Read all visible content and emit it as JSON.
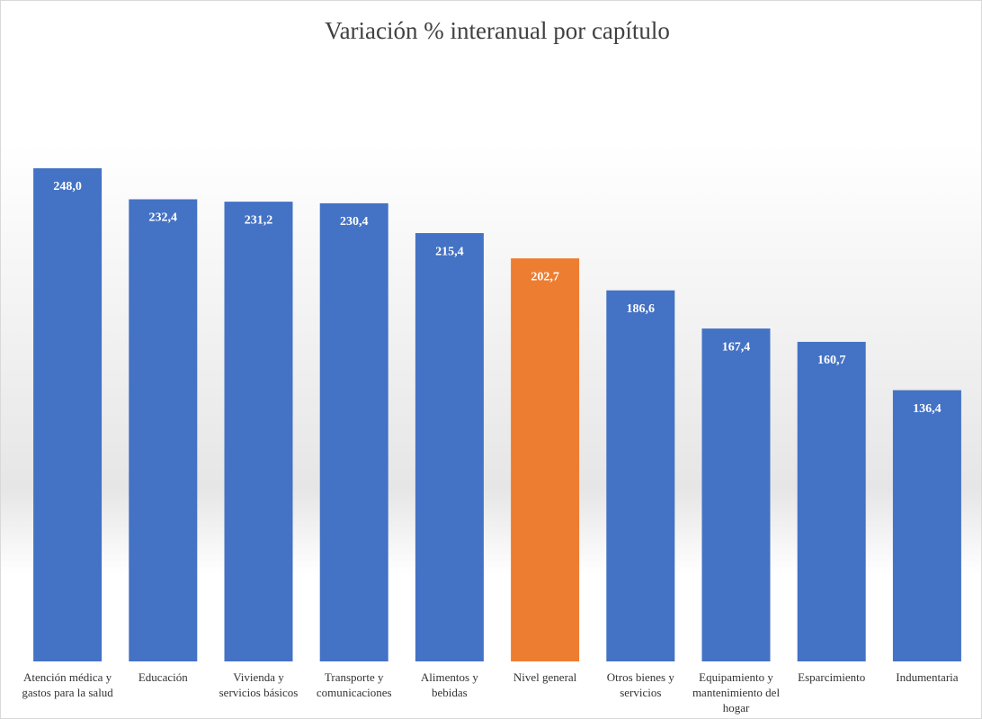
{
  "chart_data": {
    "type": "bar",
    "title": "Variación % interanual por capítulo",
    "categories": [
      "Atención médica y gastos para la salud",
      "Educación",
      "Vivienda y servicios básicos",
      "Transporte y comunicaciones",
      "Alimentos y bebidas",
      "Nivel general",
      "Otros bienes y servicios",
      "Equipamiento y mantenimiento del hogar",
      "Esparcimiento",
      "Indumentaria"
    ],
    "values": [
      248.0,
      232.4,
      231.2,
      230.4,
      215.4,
      202.7,
      186.6,
      167.4,
      160.7,
      136.4
    ],
    "value_labels": [
      "248,0",
      "232,4",
      "231,2",
      "230,4",
      "215,4",
      "202,7",
      "186,6",
      "167,4",
      "160,7",
      "136,4"
    ],
    "colors": [
      "#4472c4",
      "#4472c4",
      "#4472c4",
      "#4472c4",
      "#4472c4",
      "#ed7d31",
      "#4472c4",
      "#4472c4",
      "#4472c4",
      "#4472c4"
    ]
  }
}
